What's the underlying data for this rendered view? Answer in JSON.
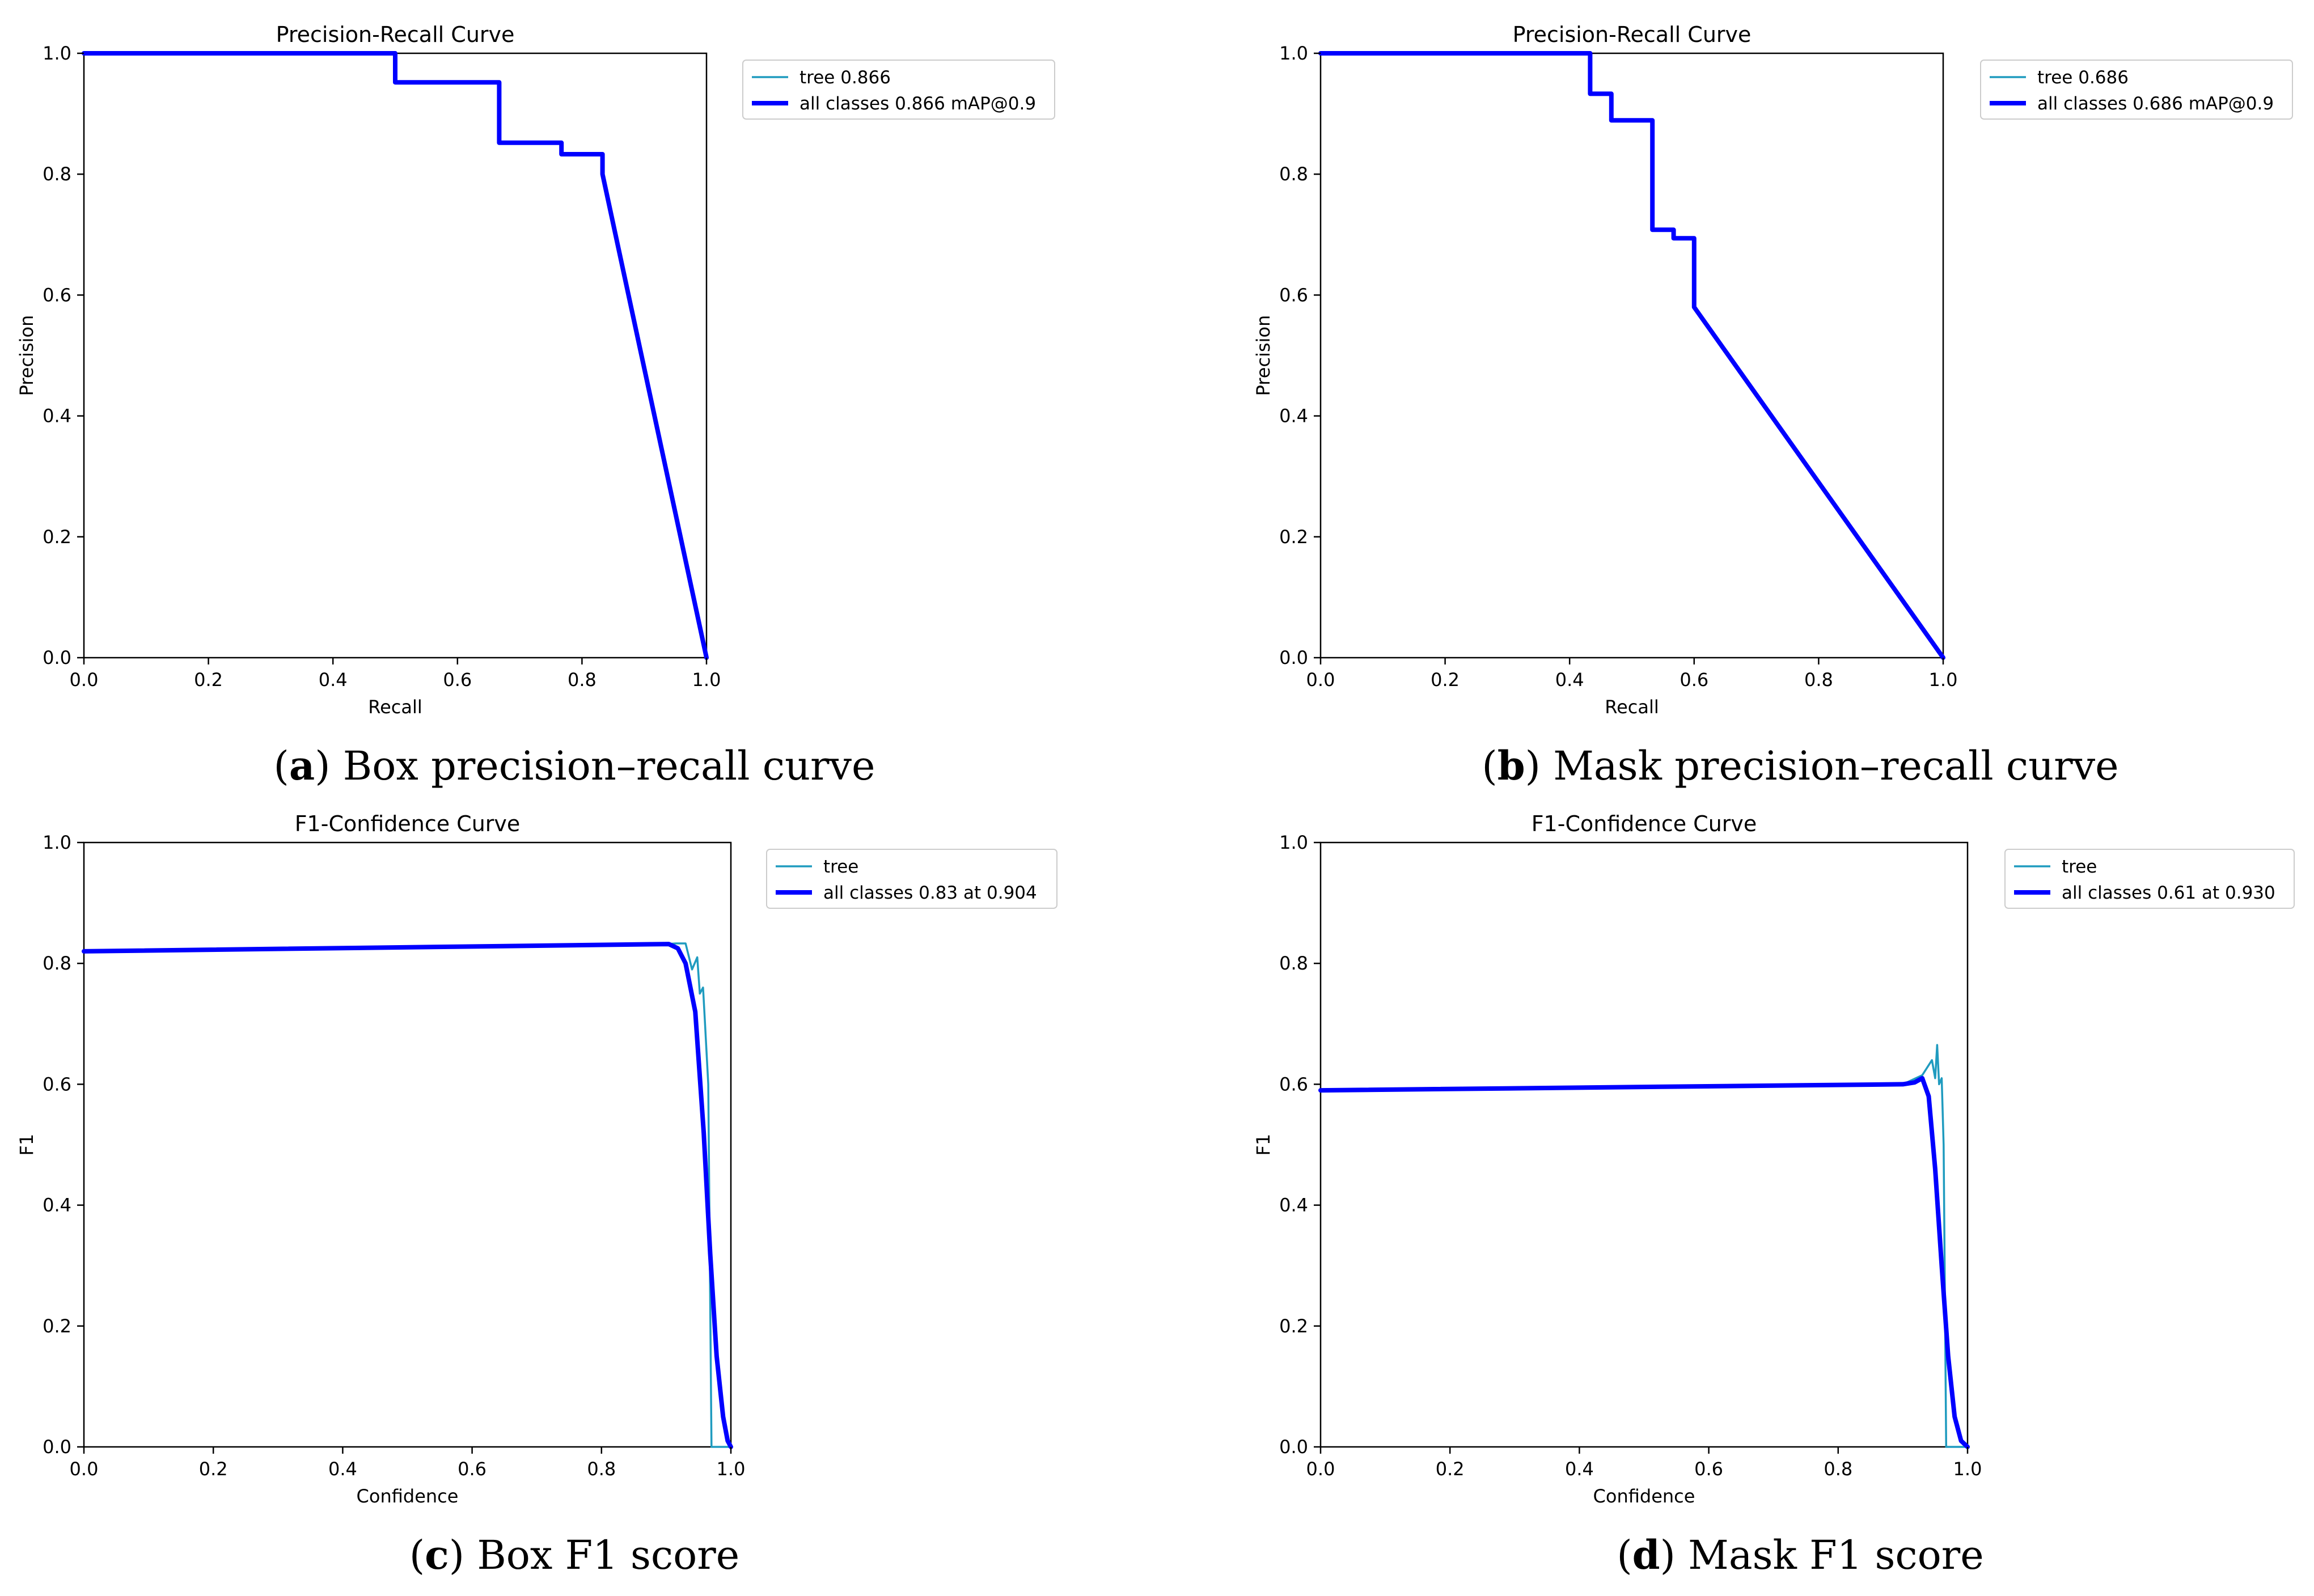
{
  "colors": {
    "tree": "#1f9bbf",
    "all_classes": "#0000ff",
    "axis": "#000000",
    "background": "#ffffff"
  },
  "chart_data": [
    {
      "id": "a",
      "type": "line",
      "title": "Precision-Recall Curve",
      "xlabel": "Recall",
      "ylabel": "Precision",
      "xlim": [
        0,
        1
      ],
      "ylim": [
        0,
        1
      ],
      "xticks": [
        "0.0",
        "0.2",
        "0.4",
        "0.6",
        "0.8",
        "1.0"
      ],
      "yticks": [
        "0.0",
        "0.2",
        "0.4",
        "0.6",
        "0.8",
        "1.0"
      ],
      "grid": false,
      "legend_position": "outside-top-right",
      "caption": {
        "letter": "a",
        "text": "Box precision–recall curve"
      },
      "series": [
        {
          "name": "tree 0.866",
          "style": "thin",
          "x": [
            0,
            0.5,
            0.5,
            0.667,
            0.667,
            0.767,
            0.767,
            0.833,
            0.833,
            1.0
          ],
          "y": [
            1.0,
            1.0,
            0.952,
            0.952,
            0.852,
            0.852,
            0.833,
            0.833,
            0.8,
            0.0
          ]
        },
        {
          "name": "all classes 0.866 mAP@0.9",
          "style": "thick",
          "x": [
            0,
            0.5,
            0.5,
            0.667,
            0.667,
            0.767,
            0.767,
            0.833,
            0.833,
            1.0
          ],
          "y": [
            1.0,
            1.0,
            0.952,
            0.952,
            0.852,
            0.852,
            0.833,
            0.833,
            0.8,
            0.0
          ]
        }
      ]
    },
    {
      "id": "b",
      "type": "line",
      "title": "Precision-Recall Curve",
      "xlabel": "Recall",
      "ylabel": "Precision",
      "xlim": [
        0,
        1
      ],
      "ylim": [
        0,
        1
      ],
      "xticks": [
        "0.0",
        "0.2",
        "0.4",
        "0.6",
        "0.8",
        "1.0"
      ],
      "yticks": [
        "0.0",
        "0.2",
        "0.4",
        "0.6",
        "0.8",
        "1.0"
      ],
      "grid": false,
      "legend_position": "outside-top-right",
      "caption": {
        "letter": "b",
        "text": "Mask precision–recall curve"
      },
      "series": [
        {
          "name": "tree 0.686",
          "style": "thin",
          "x": [
            0,
            0.433,
            0.433,
            0.467,
            0.467,
            0.533,
            0.533,
            0.567,
            0.567,
            0.6,
            0.6,
            1.0
          ],
          "y": [
            1.0,
            1.0,
            0.933,
            0.933,
            0.889,
            0.889,
            0.708,
            0.708,
            0.694,
            0.694,
            0.58,
            0.0
          ]
        },
        {
          "name": "all classes 0.686 mAP@0.9",
          "style": "thick",
          "x": [
            0,
            0.433,
            0.433,
            0.467,
            0.467,
            0.533,
            0.533,
            0.567,
            0.567,
            0.6,
            0.6,
            1.0
          ],
          "y": [
            1.0,
            1.0,
            0.933,
            0.933,
            0.889,
            0.889,
            0.708,
            0.708,
            0.694,
            0.694,
            0.58,
            0.0
          ]
        }
      ]
    },
    {
      "id": "c",
      "type": "line",
      "title": "F1-Confidence Curve",
      "xlabel": "Confidence",
      "ylabel": "F1",
      "xlim": [
        0,
        1
      ],
      "ylim": [
        0,
        1
      ],
      "xticks": [
        "0.0",
        "0.2",
        "0.4",
        "0.6",
        "0.8",
        "1.0"
      ],
      "yticks": [
        "0.0",
        "0.2",
        "0.4",
        "0.6",
        "0.8",
        "1.0"
      ],
      "grid": false,
      "legend_position": "outside-top-right",
      "caption": {
        "letter": "c",
        "text": "Box F1 score"
      },
      "series": [
        {
          "name": "tree",
          "style": "thin",
          "x": [
            0,
            0.9,
            0.915,
            0.93,
            0.94,
            0.948,
            0.952,
            0.957,
            0.96,
            0.965,
            0.97,
            0.975,
            1.0
          ],
          "y": [
            0.82,
            0.832,
            0.833,
            0.833,
            0.79,
            0.81,
            0.75,
            0.76,
            0.7,
            0.6,
            0.0,
            0.0,
            0.0
          ]
        },
        {
          "name": "all classes 0.83 at 0.904",
          "style": "thick",
          "x": [
            0,
            0.904,
            0.918,
            0.93,
            0.945,
            0.958,
            0.968,
            0.978,
            0.988,
            0.995,
            1.0
          ],
          "y": [
            0.82,
            0.832,
            0.825,
            0.8,
            0.72,
            0.52,
            0.32,
            0.15,
            0.05,
            0.01,
            0.0
          ]
        }
      ]
    },
    {
      "id": "d",
      "type": "line",
      "title": "F1-Confidence Curve",
      "xlabel": "Confidence",
      "ylabel": "F1",
      "xlim": [
        0,
        1
      ],
      "ylim": [
        0,
        1
      ],
      "xticks": [
        "0.0",
        "0.2",
        "0.4",
        "0.6",
        "0.8",
        "1.0"
      ],
      "yticks": [
        "0.0",
        "0.2",
        "0.4",
        "0.6",
        "0.8",
        "1.0"
      ],
      "grid": false,
      "legend_position": "outside-top-right",
      "caption": {
        "letter": "d",
        "text": "Mask F1 score"
      },
      "series": [
        {
          "name": "tree",
          "style": "thin",
          "x": [
            0,
            0.9,
            0.93,
            0.945,
            0.95,
            0.953,
            0.956,
            0.96,
            0.963,
            0.967,
            0.97,
            1.0
          ],
          "y": [
            0.59,
            0.6,
            0.615,
            0.64,
            0.61,
            0.665,
            0.6,
            0.61,
            0.5,
            0.0,
            0.0,
            0.0
          ]
        },
        {
          "name": "all classes 0.61 at 0.930",
          "style": "thick",
          "x": [
            0,
            0.9,
            0.918,
            0.93,
            0.94,
            0.95,
            0.96,
            0.97,
            0.98,
            0.99,
            1.0
          ],
          "y": [
            0.59,
            0.6,
            0.603,
            0.61,
            0.58,
            0.46,
            0.3,
            0.15,
            0.05,
            0.01,
            0.0
          ]
        }
      ]
    }
  ]
}
